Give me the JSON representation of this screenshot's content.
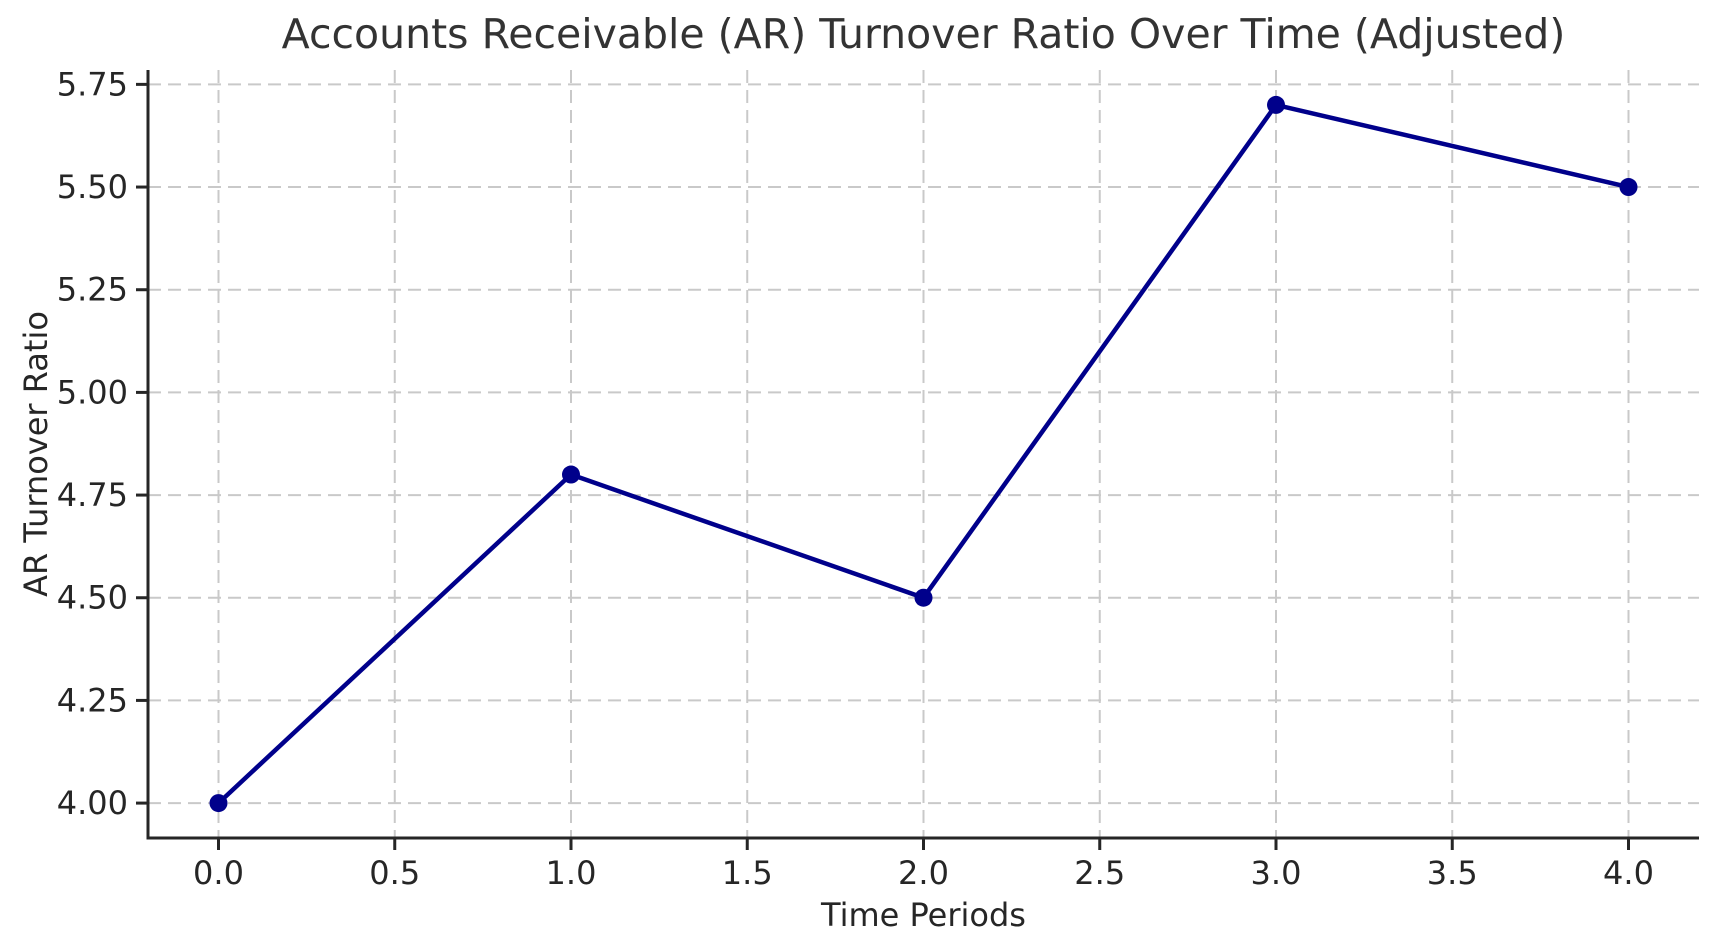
{
  "chart_data": {
    "type": "line",
    "title": "Accounts Receivable (AR) Turnover Ratio Over Time (Adjusted)",
    "xlabel": "Time Periods",
    "ylabel": "AR Turnover Ratio",
    "x": [
      0,
      1,
      2,
      3,
      4
    ],
    "y": [
      4.0,
      4.8,
      4.5,
      5.7,
      5.5
    ],
    "xticks": [
      0.0,
      0.5,
      1.0,
      1.5,
      2.0,
      2.5,
      3.0,
      3.5,
      4.0
    ],
    "xtick_labels": [
      "0.0",
      "0.5",
      "1.0",
      "1.5",
      "2.0",
      "2.5",
      "3.0",
      "3.5",
      "4.0"
    ],
    "yticks": [
      4.0,
      4.25,
      4.5,
      4.75,
      5.0,
      5.25,
      5.5,
      5.75
    ],
    "ytick_labels": [
      "4.00",
      "4.25",
      "4.50",
      "4.75",
      "5.00",
      "5.25",
      "5.50",
      "5.75"
    ],
    "xlim": [
      -0.2,
      4.2
    ],
    "ylim": [
      3.915,
      5.785
    ],
    "grid": true,
    "grid_style": "dashed",
    "legend": false,
    "marker": "circle",
    "colors": {
      "line": "#00008B",
      "marker": "#00008B",
      "grid": "#c9c9c9",
      "axis": "#262626",
      "title_text": "#333333",
      "tick_text": "#262626",
      "background": "#ffffff"
    }
  }
}
